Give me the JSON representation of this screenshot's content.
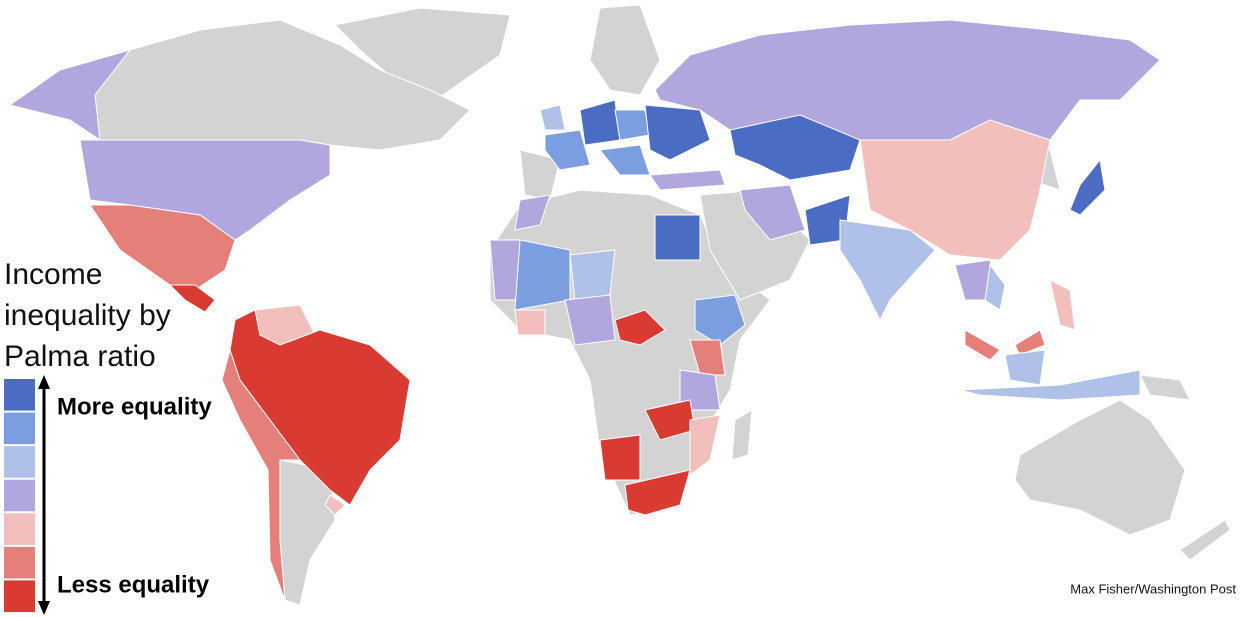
{
  "title": "Income inequality by Palma ratio",
  "legend": {
    "colors": [
      "#4a6cc3",
      "#7a9ee0",
      "#afc0e9",
      "#b1a7de",
      "#f2bfbd",
      "#e57f7a",
      "#d93a32"
    ],
    "top_label": "More equality",
    "bottom_label": "Less equality"
  },
  "credit": "Max Fisher/Washington Post"
}
